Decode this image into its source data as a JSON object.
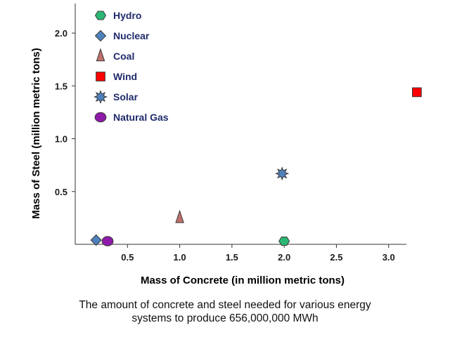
{
  "caption": {
    "line1": "The amount of concrete and steel needed for various energy",
    "line2": "systems to produce 656,000,000 MWh"
  },
  "chart_data": {
    "type": "scatter",
    "title": "",
    "xlabel": "Mass of Concrete (in million metric tons)",
    "ylabel": "Mass of Steel (million metric tons)",
    "xlim": [
      0,
      3.17
    ],
    "ylim": [
      0,
      2.28
    ],
    "xticks": [
      0.5,
      1.0,
      1.5,
      2.0,
      2.5,
      3.0
    ],
    "xtick_labels": [
      "0.5",
      "1.0",
      "1.5",
      "2.0",
      "2.5",
      "3.0"
    ],
    "yticks": [
      0.5,
      1.0,
      1.5,
      2.0
    ],
    "ytick_labels": [
      "0.5",
      "1.0",
      "1.5",
      "2.0"
    ],
    "grid": false,
    "legend_position": "top-left",
    "series": [
      {
        "name": "Hydro",
        "marker": "hexagon",
        "color": "#2bb673",
        "points": [
          {
            "x": 2.0,
            "y": 0.03
          }
        ]
      },
      {
        "name": "Nuclear",
        "marker": "diamond",
        "color": "#4f81bd",
        "points": [
          {
            "x": 0.2,
            "y": 0.04
          }
        ]
      },
      {
        "name": "Coal",
        "marker": "triangle",
        "color": "#c0706a",
        "points": [
          {
            "x": 1.0,
            "y": 0.25
          }
        ]
      },
      {
        "name": "Wind",
        "marker": "square",
        "color": "#ff0000",
        "points": [
          {
            "x": 3.27,
            "y": 1.44
          }
        ]
      },
      {
        "name": "Solar",
        "marker": "star",
        "color": "#4f81bd",
        "points": [
          {
            "x": 1.98,
            "y": 0.67
          }
        ]
      },
      {
        "name": "Natural Gas",
        "marker": "circle",
        "color": "#8e1aa8",
        "points": [
          {
            "x": 0.31,
            "y": 0.03
          }
        ]
      }
    ]
  }
}
